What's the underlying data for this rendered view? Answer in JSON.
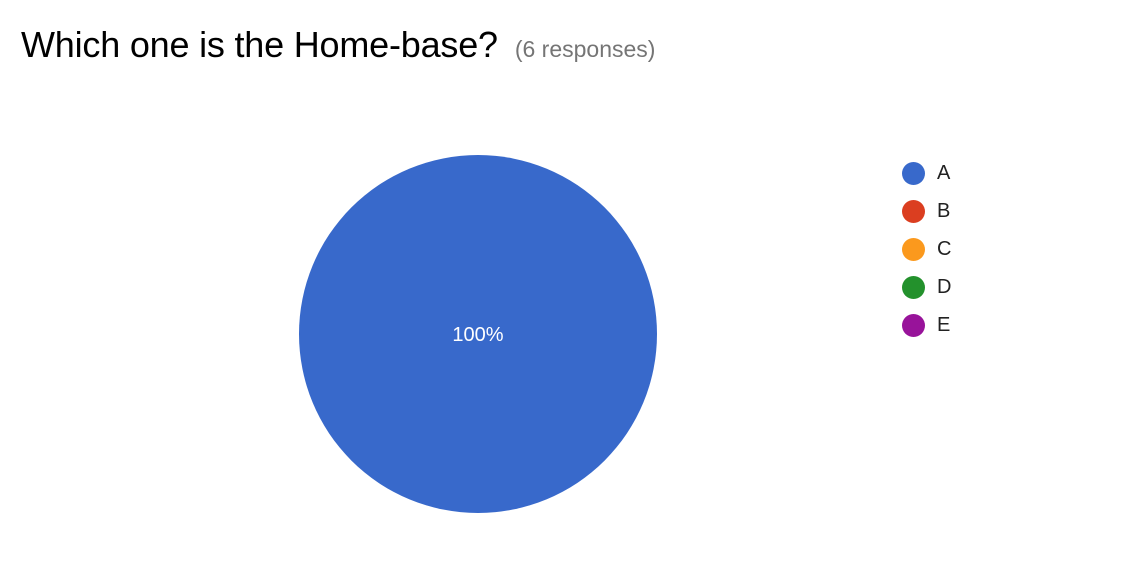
{
  "question": {
    "title": "Which one is the Home-base?",
    "responses": "(6 responses)"
  },
  "chart_data": {
    "type": "pie",
    "title": "Which one is the Home-base?",
    "categories": [
      "A",
      "B",
      "C",
      "D",
      "E"
    ],
    "values": [
      100,
      0,
      0,
      0,
      0
    ],
    "data_labels": [
      "100%",
      "",
      "",
      "",
      ""
    ],
    "colors": [
      "#3869CB",
      "#DB3E20",
      "#FB991D",
      "#23912C",
      "#98139A"
    ],
    "legend_position": "right"
  }
}
